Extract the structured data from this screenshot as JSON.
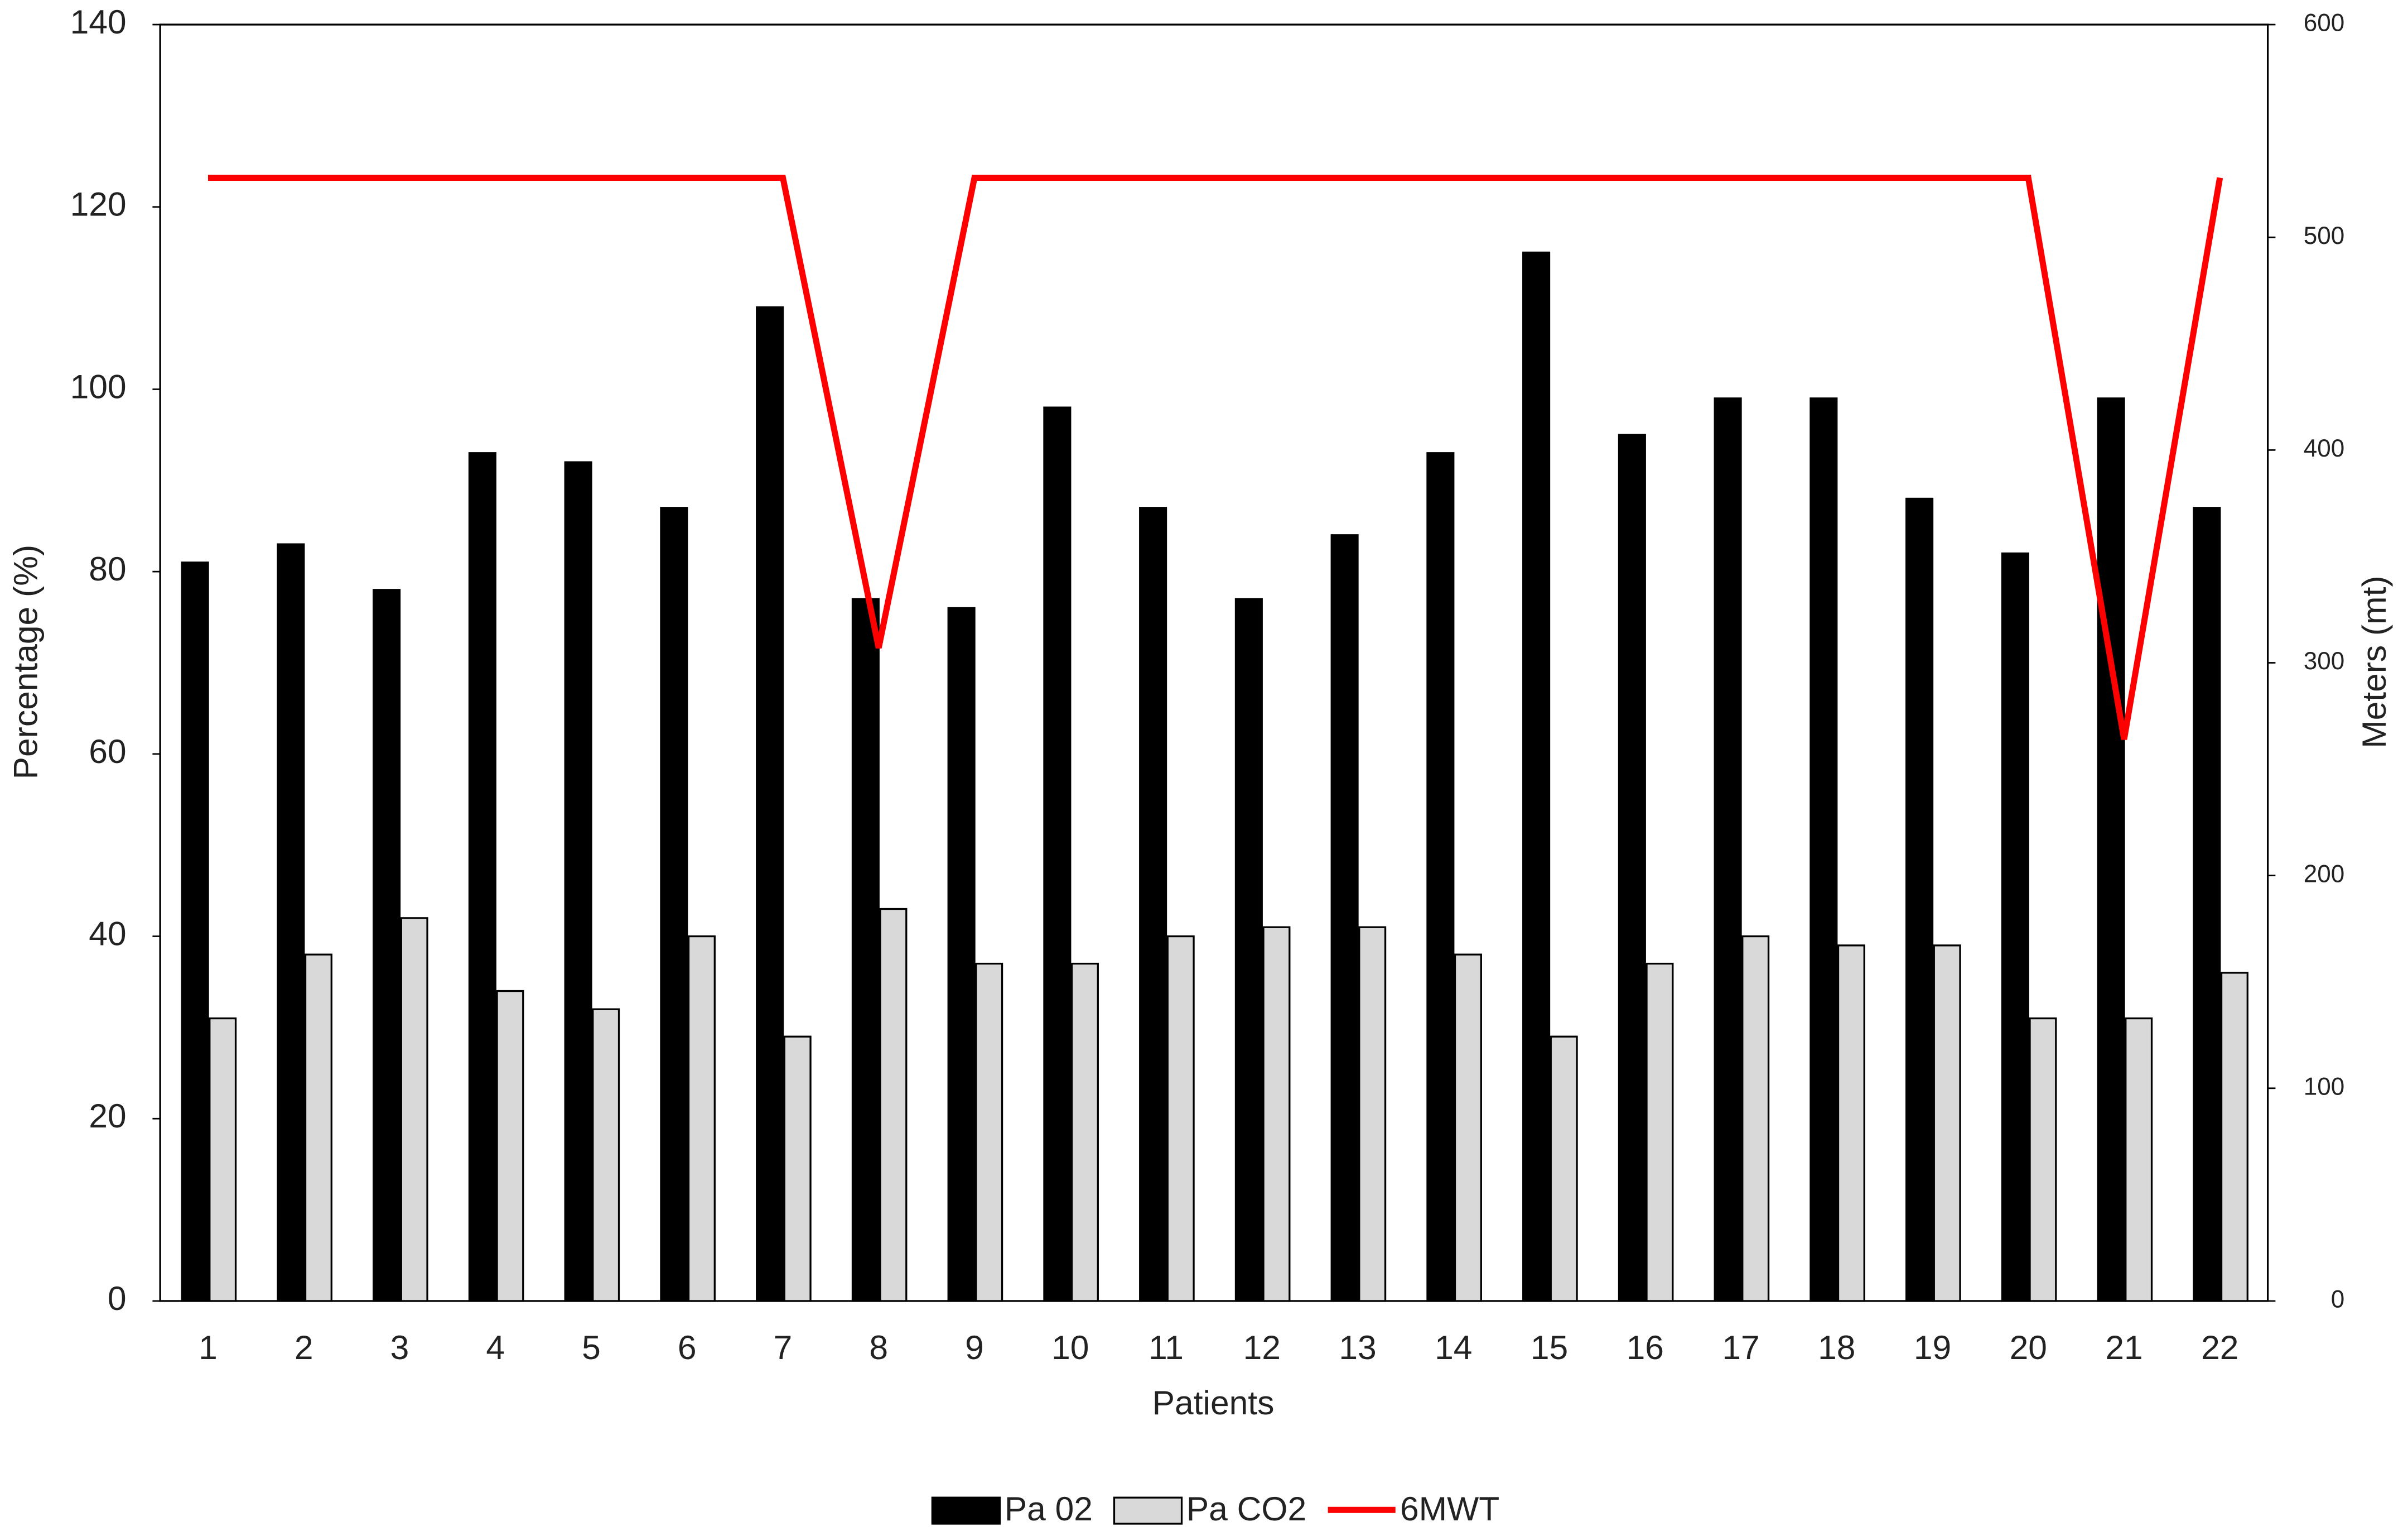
{
  "chart_data": {
    "type": "bar-line",
    "categories": [
      "1",
      "2",
      "3",
      "4",
      "5",
      "6",
      "7",
      "8",
      "9",
      "10",
      "11",
      "12",
      "13",
      "14",
      "15",
      "16",
      "17",
      "18",
      "19",
      "20",
      "21",
      "22"
    ],
    "xlabel": "Patients",
    "ylabel": "Percentage (%)",
    "y2label": "Meters (mt)",
    "ylim": [
      0,
      140
    ],
    "yticks": [
      0,
      20,
      40,
      60,
      80,
      100,
      120,
      140
    ],
    "y2lim": [
      0,
      600
    ],
    "y2ticks": [
      0,
      100,
      200,
      300,
      400,
      500,
      600
    ],
    "legend": "bottom",
    "series": [
      {
        "name": "Pa 02",
        "type": "bar",
        "color": "#000000",
        "values": [
          81,
          83,
          78,
          93,
          92,
          87,
          109,
          77,
          76,
          98,
          87,
          77,
          84,
          93,
          115,
          95,
          99,
          99,
          88,
          82,
          99,
          87
        ]
      },
      {
        "name": "Pa CO2",
        "type": "bar",
        "color": "#d9d9d9",
        "values": [
          31,
          38,
          42,
          34,
          32,
          40,
          29,
          43,
          37,
          37,
          40,
          41,
          41,
          38,
          29,
          37,
          40,
          39,
          39,
          31,
          31,
          36
        ]
      },
      {
        "name": "6MWT",
        "type": "line",
        "axis": "y2",
        "color": "#ff0000",
        "values": [
          528,
          528,
          528,
          528,
          528,
          528,
          528,
          307,
          528,
          528,
          528,
          528,
          528,
          528,
          528,
          528,
          528,
          528,
          528,
          528,
          264,
          528
        ]
      }
    ]
  }
}
